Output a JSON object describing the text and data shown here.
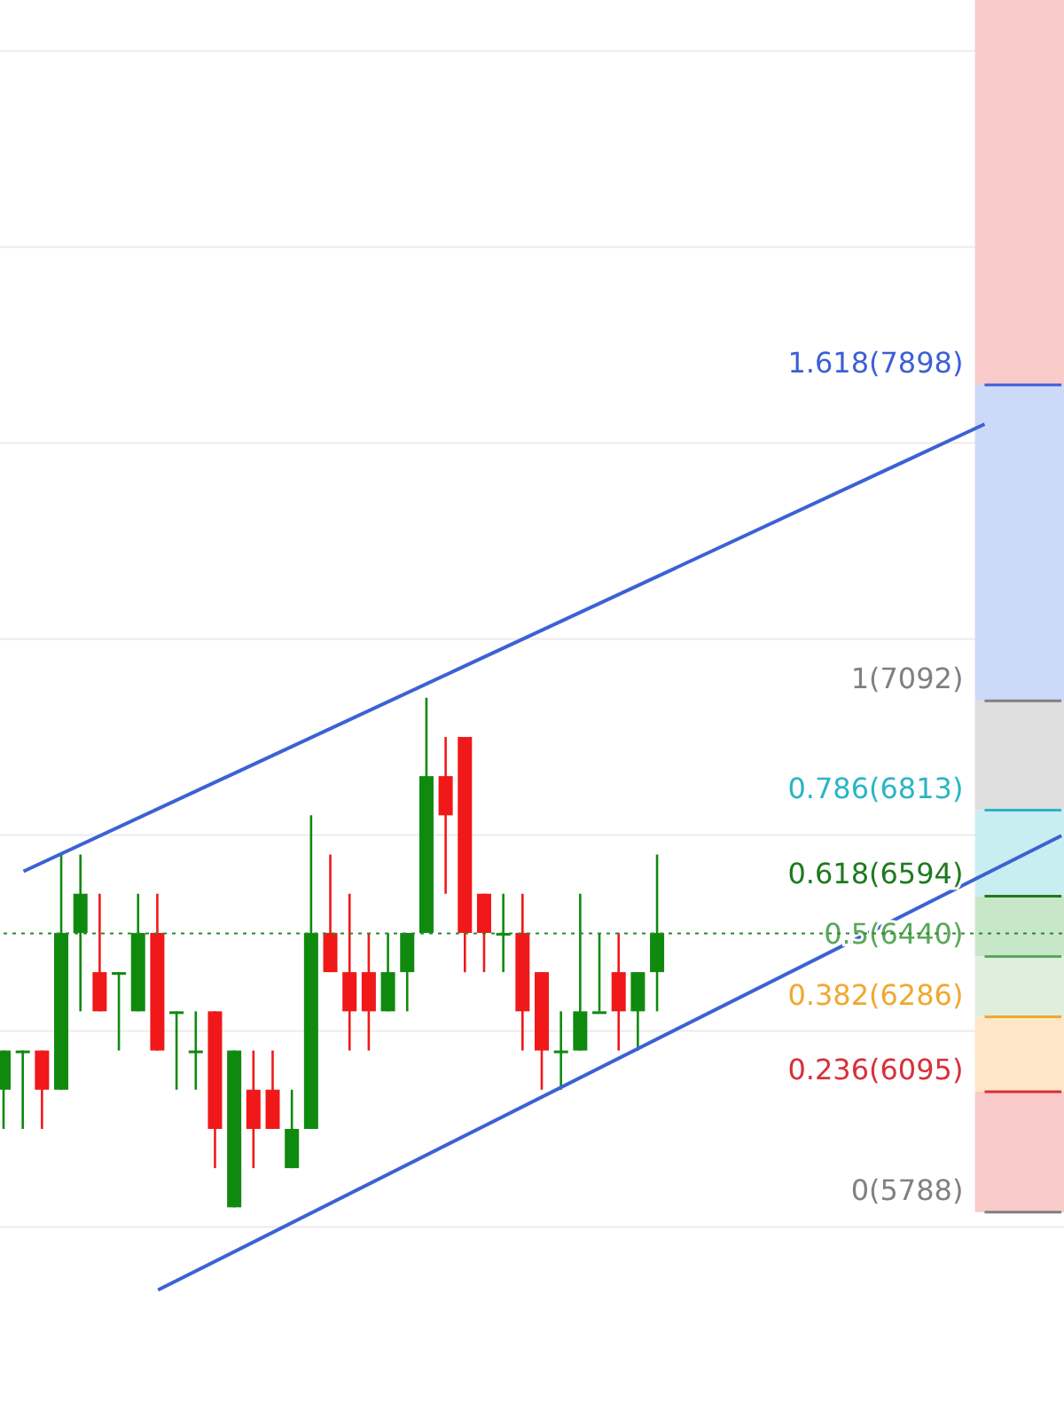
{
  "chart_data": {
    "type": "candlestick",
    "categories": [
      null,
      null,
      null,
      null,
      null,
      null,
      null,
      null,
      null,
      null,
      null,
      null,
      null,
      null,
      null,
      null,
      null,
      null,
      null,
      null,
      null,
      null,
      null,
      null,
      null,
      null,
      null,
      null,
      null,
      null,
      null,
      null,
      null,
      null,
      null,
      null,
      null,
      null,
      null,
      null,
      null,
      null,
      null,
      null,
      null,
      null,
      null,
      null,
      null,
      null,
      null,
      null,
      null,
      null,
      null,
      null
    ],
    "ohlc": [
      [
        6100,
        6200,
        6000,
        6200
      ],
      [
        6200,
        6200,
        6000,
        6200
      ],
      [
        6200,
        6200,
        6000,
        6100
      ],
      [
        6100,
        6700,
        6100,
        6500
      ],
      [
        6500,
        6700,
        6300,
        6600
      ],
      [
        6400,
        6600,
        6300,
        6300
      ],
      [
        6400,
        6400,
        6200,
        6400
      ],
      [
        6300,
        6600,
        6300,
        6500
      ],
      [
        6500,
        6600,
        6200,
        6200
      ],
      [
        6300,
        6300,
        6100,
        6300
      ],
      [
        6200,
        6300,
        6100,
        6200
      ],
      [
        6300,
        6300,
        5900,
        6000
      ],
      [
        5800,
        6200,
        5800,
        6200
      ],
      [
        6100,
        6200,
        5900,
        6000
      ],
      [
        6100,
        6200,
        6000,
        6000
      ],
      [
        5900,
        6100,
        5900,
        6000
      ],
      [
        6000,
        6800,
        6000,
        6500
      ],
      [
        6500,
        6700,
        6400,
        6400
      ],
      [
        6400,
        6600,
        6200,
        6300
      ],
      [
        6400,
        6500,
        6200,
        6300
      ],
      [
        6300,
        6500,
        6300,
        6400
      ],
      [
        6400,
        6500,
        6300,
        6500
      ],
      [
        6500,
        7100,
        6500,
        6900
      ],
      [
        6900,
        7000,
        6600,
        6800
      ],
      [
        7000,
        7000,
        6400,
        6500
      ],
      [
        6600,
        6600,
        6400,
        6500
      ],
      [
        6500,
        6600,
        6400,
        6500
      ],
      [
        6500,
        6600,
        6200,
        6300
      ],
      [
        6400,
        6400,
        6100,
        6200
      ],
      [
        6200,
        6300,
        6100,
        6200
      ],
      [
        6200,
        6600,
        6200,
        6300
      ],
      [
        6300,
        6500,
        6300,
        6300
      ],
      [
        6400,
        6500,
        6200,
        6300
      ],
      [
        6300,
        6400,
        6200,
        6400
      ],
      [
        6400,
        6700,
        6300,
        6500
      ],
      null,
      null,
      null,
      null,
      null,
      null,
      null,
      null,
      null,
      null,
      null,
      null,
      null,
      null,
      null,
      null,
      null,
      null,
      null,
      null,
      null
    ],
    "colors": [
      "#0f8a0f",
      "#0f8a0f",
      "#f01818",
      "#0f8a0f",
      "#0f8a0f",
      "#f01818",
      "#0f8a0f",
      "#0f8a0f",
      "#f01818",
      "#0f8a0f",
      "#0f8a0f",
      "#f01818",
      "#0f8a0f",
      "#f01818",
      "#f01818",
      "#0f8a0f",
      "#0f8a0f",
      "#f01818",
      "#f01818",
      "#f01818",
      "#0f8a0f",
      "#0f8a0f",
      "#0f8a0f",
      "#f01818",
      "#f01818",
      "#f01818",
      "#0f8a0f",
      "#f01818",
      "#f01818",
      "#0f8a0f",
      "#0f8a0f",
      "#0f8a0f",
      "#f01818",
      "#0f8a0f",
      "#0f8a0f",
      null,
      null,
      null,
      null,
      null,
      null,
      null,
      null,
      null,
      null,
      null,
      null,
      null,
      null,
      null,
      null,
      null,
      null,
      null,
      null,
      null
    ],
    "series": [
      {
        "type": "line",
        "color": "#3b62d4",
        "values": [
          null,
          6657,
          null,
          null,
          null,
          null,
          null,
          null,
          null,
          null,
          null,
          null,
          null,
          null,
          null,
          null,
          null,
          null,
          null,
          null,
          null,
          null,
          null,
          null,
          null,
          null,
          null,
          null,
          null,
          null,
          null,
          null,
          null,
          null,
          null,
          null,
          null,
          null,
          null,
          null,
          null,
          null,
          null,
          null,
          null,
          null,
          null,
          null,
          null,
          null,
          null,
          7798,
          null,
          null,
          null,
          null
        ]
      },
      {
        "type": "line",
        "color": "#3b62d4",
        "values": [
          null,
          null,
          null,
          null,
          null,
          null,
          null,
          null,
          5589,
          null,
          null,
          null,
          null,
          null,
          null,
          null,
          null,
          null,
          null,
          null,
          null,
          null,
          null,
          null,
          null,
          null,
          null,
          null,
          null,
          null,
          null,
          null,
          null,
          null,
          null,
          null,
          null,
          null,
          null,
          null,
          null,
          null,
          null,
          null,
          null,
          null,
          null,
          null,
          null,
          null,
          null,
          null,
          null,
          null,
          null,
          6748
        ]
      }
    ],
    "ylim": [
      5260,
      8880
    ],
    "yticks": [
      {
        "value": 5750,
        "label": null
      },
      {
        "value": 6250,
        "label": null
      },
      {
        "value": 6750,
        "label": null
      },
      {
        "value": 7250,
        "label": null
      },
      {
        "value": 7750,
        "label": null
      },
      {
        "value": 8250,
        "label": null
      },
      {
        "value": 8750,
        "label": null
      }
    ],
    "tick_labels": false,
    "grid": "y",
    "ref_lines": [
      {
        "axis": "y",
        "value": 7898,
        "label": "1.618(7898)",
        "color": "#3d5fd6"
      },
      {
        "axis": "y",
        "value": 7092,
        "label": "1(7092)",
        "color": "#808080"
      },
      {
        "axis": "y",
        "value": 6813,
        "label": "0.786(6813)",
        "color": "#2bb5c6"
      },
      {
        "axis": "y",
        "value": 6594,
        "label": "0.618(6594)",
        "color": "#1e7a1e"
      },
      {
        "axis": "y",
        "value": 6440,
        "label": "0.5(6440)",
        "color": "#5aa85a"
      },
      {
        "axis": "y",
        "value": 6286,
        "label": "0.382(6286)",
        "color": "#f0a830"
      },
      {
        "axis": "y",
        "value": 6095,
        "label": "0.236(6095)",
        "color": "#d8303a"
      },
      {
        "axis": "y",
        "value": 5788,
        "label": "0(5788)",
        "color": "#808080"
      },
      {
        "axis": "y",
        "value": 6499,
        "label": null,
        "color": "#2a8a2a",
        "line_style": "dotted"
      }
    ],
    "bands": [
      {
        "axis": "y",
        "from": 7898,
        "to": 8880,
        "color": "#f9caca"
      },
      {
        "axis": "y",
        "from": 7092,
        "to": 7898,
        "color": "#cdd9f8"
      },
      {
        "axis": "y",
        "from": 6813,
        "to": 7092,
        "color": "#dedede"
      },
      {
        "axis": "y",
        "from": 6594,
        "to": 6813,
        "color": "#c8eef2"
      },
      {
        "axis": "y",
        "from": 6440,
        "to": 6594,
        "color": "#c8e6c8"
      },
      {
        "axis": "y",
        "from": 6286,
        "to": 6440,
        "color": "#deefde"
      },
      {
        "axis": "y",
        "from": 6095,
        "to": 6286,
        "color": "#fde7c6"
      },
      {
        "axis": "y",
        "from": 5788,
        "to": 6095,
        "color": "#f9caca"
      }
    ]
  }
}
